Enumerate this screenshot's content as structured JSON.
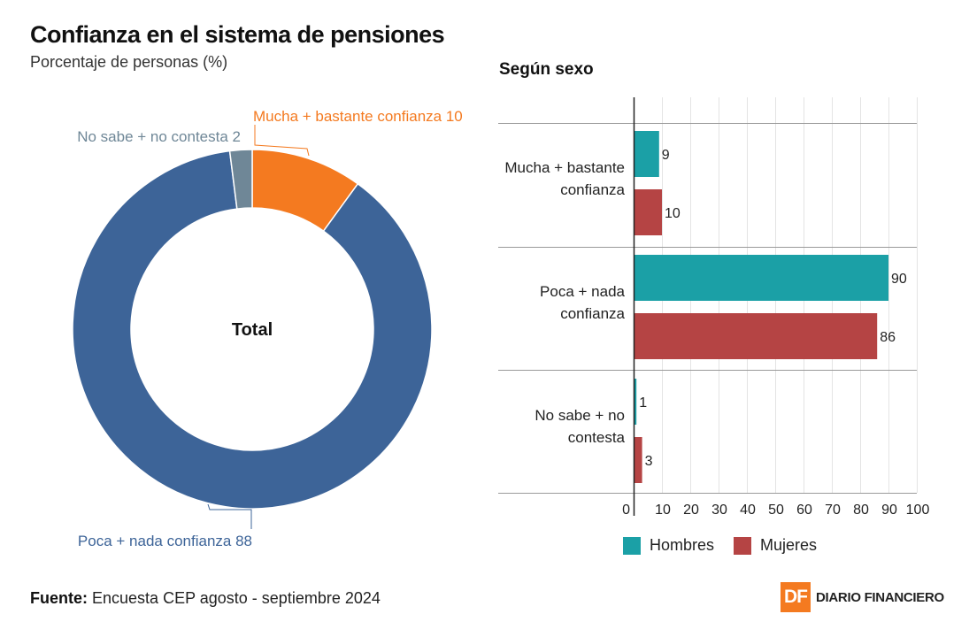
{
  "header": {
    "title": "Confianza en el sistema de pensiones",
    "subtitle": "Porcentaje de personas (%)",
    "bar_title": "Según sexo"
  },
  "footer": {
    "source_label": "Fuente:",
    "source_text": "Encuesta CEP agosto - septiembre 2024",
    "logo_mark": "DF",
    "logo_name": "DIARIO FINANCIERO"
  },
  "colors": {
    "mucha": "#f47a20",
    "poca": "#3d6498",
    "no_sabe": "#6f8797",
    "hombres": "#1ba0a6",
    "mujeres": "#b54444"
  },
  "chart_data": [
    {
      "type": "pie",
      "title": "Total",
      "categories": [
        "Mucha + bastante confianza",
        "Poca + nada confianza",
        "No sabe + no contesta"
      ],
      "values": [
        10,
        88,
        2
      ],
      "labels": [
        "Mucha + bastante confianza 10",
        "Poca + nada confianza 88",
        "No sabe + no contesta 2"
      ]
    },
    {
      "type": "bar",
      "title": "Según sexo",
      "orientation": "horizontal",
      "categories": [
        "Mucha + bastante confianza",
        "Poca + nada confianza",
        "No sabe + no contesta"
      ],
      "category_lines": [
        [
          "Mucha + bastante",
          "confianza"
        ],
        [
          "Poca + nada",
          "confianza"
        ],
        [
          "No sabe + no",
          "contesta"
        ]
      ],
      "series": [
        {
          "name": "Hombres",
          "values": [
            9,
            90,
            1
          ]
        },
        {
          "name": "Mujeres",
          "values": [
            10,
            86,
            3
          ]
        }
      ],
      "xlim": [
        0,
        100
      ],
      "xticks": [
        0,
        10,
        20,
        30,
        40,
        50,
        60,
        70,
        80,
        90,
        100
      ],
      "grid": true,
      "legend": "bottom"
    }
  ]
}
